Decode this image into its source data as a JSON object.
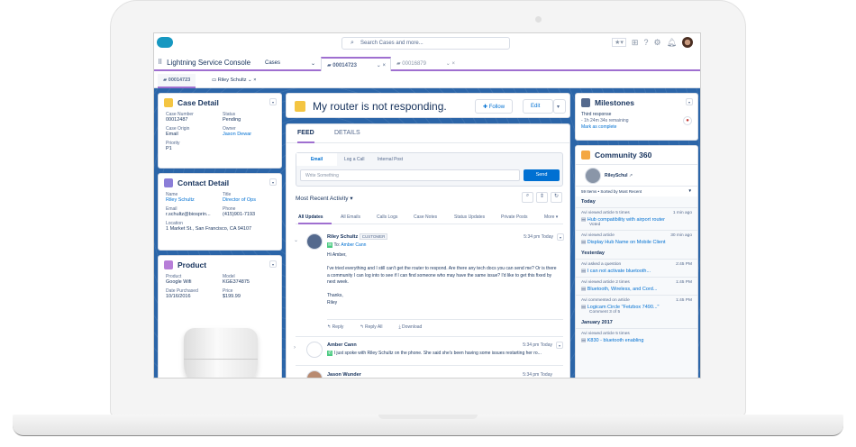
{
  "header": {
    "search_placeholder": "Search Cases and more...",
    "icons": [
      "favorites-star-icon",
      "add-icon",
      "help-icon",
      "gear-icon",
      "bell-icon",
      "avatar"
    ]
  },
  "nav": {
    "app_name": "Lightning Service Console",
    "tabs": [
      {
        "label": "Cases"
      },
      {
        "label": "00014723"
      },
      {
        "label": "00016879"
      }
    ]
  },
  "subtabs": [
    {
      "label": "00014723"
    },
    {
      "label": "Riley Schultz"
    }
  ],
  "case_detail": {
    "title": "Case Detail",
    "fields": [
      {
        "label": "Case Number",
        "value": "00012487"
      },
      {
        "label": "Status",
        "value": "Pending"
      },
      {
        "label": "Case Origin",
        "value": "Email"
      },
      {
        "label": "Owner",
        "value": "Jason Dewar"
      },
      {
        "label": "Priority",
        "value": "P1"
      }
    ]
  },
  "contact_detail": {
    "title": "Contact Detail",
    "fields": [
      {
        "label": "Name",
        "value": "Riley Schultz"
      },
      {
        "label": "Title",
        "value": "Director of Ops"
      },
      {
        "label": "Email",
        "value": "r.schultz@biosprin..."
      },
      {
        "label": "Phone",
        "value": "(415)901-7193"
      },
      {
        "label": "Location",
        "value": "1 Market St., San Francisco, CA 94107"
      }
    ]
  },
  "product": {
    "title": "Product",
    "fields": [
      {
        "label": "Product",
        "value": "Google Wifi"
      },
      {
        "label": "Model",
        "value": "KGE374875"
      },
      {
        "label": "Date Purchased",
        "value": "10/16/2016"
      },
      {
        "label": "Price",
        "value": "$199.99"
      }
    ]
  },
  "case": {
    "title": "My router is not responding.",
    "follow": "Follow",
    "edit": "Edit"
  },
  "feed": {
    "tabs": [
      "FEED",
      "DETAILS"
    ],
    "composer_tabs": [
      "Email",
      "Log a Call",
      "Internal Post"
    ],
    "composer_placeholder": "Write Something",
    "send": "Send",
    "sort": "Most Recent Activity",
    "filters": [
      "All Updates",
      "All Emails",
      "Calls Logs",
      "Case Notes",
      "Status Updates",
      "Private Posts",
      "More"
    ],
    "posts": [
      {
        "author": "Riley Schultz",
        "badge": "CUSTOMER",
        "time": "5:34 pm Today",
        "to_label": "To:",
        "to": "Amber Cann",
        "body": [
          "Hi Amber,",
          "I've tried everything and I still can't get the router to respond. Are there any tech docs you can send me? Or is there a community I can log into to see if I can find someone who may have the same issue? I'd like to get this fixed by next week.",
          "Thanks,",
          "Riley"
        ],
        "actions": [
          "Reply",
          "Reply All",
          "Download"
        ]
      },
      {
        "author": "Amber Cann",
        "time": "5:34 pm Today",
        "body": "I just spoke with Riley Schultz on the phone. She said she's been having some issues restarting her ro..."
      },
      {
        "author": "Jason Wunder",
        "time": "5:34 pm Today"
      }
    ]
  },
  "milestones": {
    "title": "Milestones",
    "name": "Third response",
    "remaining": "- 1h 24m 34s remaining",
    "complete": "Mark as complete"
  },
  "community": {
    "title": "Community 360",
    "user": "RileySchul",
    "summary": "59 Items • Sorted by Most Recent",
    "groups": [
      {
        "day": "Today",
        "events": [
          {
            "what": "Avi viewed article 5 times",
            "when": "1 min ago",
            "link": "Hub compatibility with airport router",
            "extra": "Voted"
          },
          {
            "what": "Avi viewed article",
            "when": "30 min ago",
            "link": "Display Hub Name on Mobile Client"
          }
        ]
      },
      {
        "day": "Yesterday",
        "events": [
          {
            "what": "Avi asked a question",
            "when": "2:45 PM",
            "link": "I can not activate bluetooth..."
          },
          {
            "what": "Avi viewed article 2 times",
            "when": "1:45 PM",
            "link": "Bluetooth, Wireless, and Cord..."
          },
          {
            "what": "Avi commented on article",
            "when": "1:45 PM",
            "link": "Logicam Circle \"Fetzbox 7490...\"",
            "extra": "Comment 3 of 5"
          }
        ]
      },
      {
        "day": "January 2017",
        "events": [
          {
            "what": "Avi viewed article 5 times",
            "when": "",
            "link": "K830 - bluetooth enabling"
          }
        ]
      }
    ]
  },
  "colors": {
    "brand_blue": "#0070d2",
    "accent_purple": "#9f6fd0",
    "background_blue": "#2b65a8",
    "case_icon": "#f4c542",
    "send_button": "#0070d2"
  }
}
